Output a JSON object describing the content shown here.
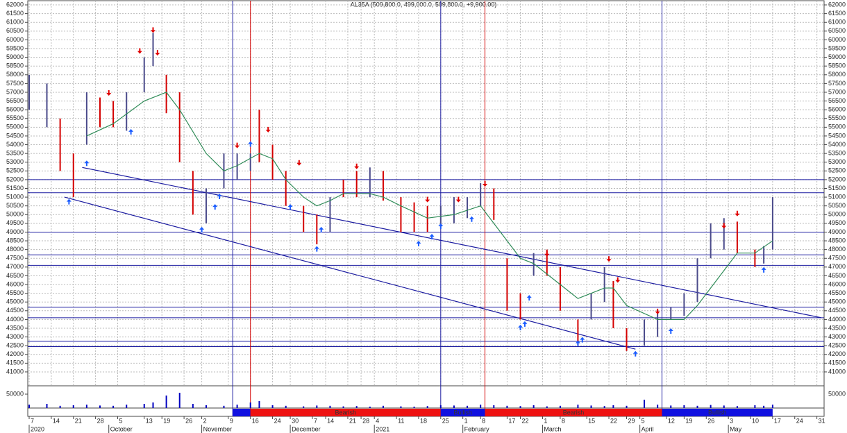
{
  "chart_data": {
    "type": "ohlc",
    "title": "AL35A (509,800.0, 499,000.0, 509,800.0, +9,900.00)",
    "x": [
      0,
      4,
      7,
      10,
      13,
      16,
      19,
      22,
      26,
      28,
      31,
      34,
      37,
      40,
      44,
      47,
      50,
      52,
      55,
      58,
      62,
      65,
      68,
      71,
      74,
      77,
      80,
      84,
      87,
      90,
      93,
      96,
      99,
      102,
      105,
      108,
      111,
      114,
      117,
      120,
      124,
      127,
      130,
      132,
      135,
      139,
      142,
      145,
      148,
      151,
      154,
      157,
      160,
      164,
      166,
      168
    ],
    "high": [
      58000,
      57500,
      55500,
      53500,
      57000,
      56700,
      56500,
      57000,
      59000,
      60400,
      58000,
      57000,
      52500,
      51500,
      53500,
      53500,
      53500,
      56000,
      54000,
      52500,
      50500,
      50000,
      51000,
      52000,
      52500,
      52700,
      52500,
      51000,
      50700,
      50500,
      50500,
      51000,
      51000,
      51800,
      51500,
      47500,
      45500,
      47800,
      48000,
      47000,
      44000,
      45500,
      47000,
      46200,
      43500,
      44000,
      44500,
      44700,
      45500,
      47500,
      49500,
      49800,
      49600,
      48000,
      48200,
      51000
    ],
    "low": [
      56000,
      55000,
      52500,
      51000,
      54000,
      55000,
      55000,
      54800,
      57000,
      58500,
      55800,
      53000,
      50000,
      49500,
      51500,
      52000,
      52500,
      53000,
      52000,
      50500,
      49000,
      48300,
      49000,
      51000,
      51000,
      51000,
      50800,
      49000,
      49000,
      49000,
      49300,
      49500,
      49800,
      50500,
      49700,
      44500,
      44000,
      46500,
      46500,
      44500,
      42500,
      44000,
      45000,
      43500,
      42200,
      42500,
      43000,
      44000,
      44200,
      45000,
      47500,
      48000,
      47800,
      47000,
      47200,
      48000
    ],
    "colors": [
      "#4a4a8a",
      "#4a4a8a",
      "#d40000",
      "#d40000",
      "#4a4a8a",
      "#d40000",
      "#d40000",
      "#4a4a8a",
      "#4a4a8a",
      "#4a4a8a",
      "#d40000",
      "#d40000",
      "#d40000",
      "#4a4a8a",
      "#4a4a8a",
      "#4a4a8a",
      "#4a4a8a",
      "#d40000",
      "#d40000",
      "#d40000",
      "#d40000",
      "#d40000",
      "#4a4a8a",
      "#d40000",
      "#d40000",
      "#4a4a8a",
      "#d40000",
      "#d40000",
      "#d40000",
      "#d40000",
      "#4a4a8a",
      "#4a4a8a",
      "#4a4a8a",
      "#4a4a8a",
      "#d40000",
      "#d40000",
      "#d40000",
      "#4a4a8a",
      "#d40000",
      "#d40000",
      "#d40000",
      "#4a4a8a",
      "#4a4a8a",
      "#d40000",
      "#d40000",
      "#4a4a8a",
      "#4a4a8a",
      "#4a4a8a",
      "#4a4a8a",
      "#4a4a8a",
      "#4a4a8a",
      "#4a4a8a",
      "#d40000",
      "#d40000",
      "#4a4a8a",
      "#4a4a8a"
    ],
    "volume": [
      12000,
      15000,
      8000,
      10000,
      12000,
      9000,
      8000,
      12000,
      15000,
      20000,
      45000,
      55000,
      15000,
      10000,
      8000,
      12000,
      20000,
      25000,
      10000,
      8000,
      6000,
      9000,
      8000,
      6000,
      7000,
      5000,
      8000,
      6000,
      5000,
      7000,
      10000,
      9000,
      8000,
      12000,
      10000,
      8000,
      7000,
      10000,
      6000,
      8000,
      12000,
      9000,
      7000,
      10000,
      8000,
      30000,
      12000,
      9000,
      10000,
      8000,
      11000,
      9000,
      7000,
      10000,
      8000,
      12000
    ],
    "volume_color": "#0000c0",
    "xlim": [
      0,
      179
    ],
    "xticks": [
      {
        "value": 0,
        "label": "7"
      },
      {
        "value": 5,
        "label": "14"
      },
      {
        "value": 10,
        "label": "21"
      },
      {
        "value": 15,
        "label": "28"
      },
      {
        "value": 20,
        "label": "5"
      },
      {
        "value": 26,
        "label": "13"
      },
      {
        "value": 30,
        "label": "19"
      },
      {
        "value": 35,
        "label": "26"
      },
      {
        "value": 39,
        "label": "2"
      },
      {
        "value": 45,
        "label": "9"
      },
      {
        "value": 50,
        "label": "16"
      },
      {
        "value": 55,
        "label": "24"
      },
      {
        "value": 59,
        "label": "30"
      },
      {
        "value": 64,
        "label": "7"
      },
      {
        "value": 67,
        "label": "14"
      },
      {
        "value": 72,
        "label": "21"
      },
      {
        "value": 75,
        "label": "28"
      },
      {
        "value": 78,
        "label": "4"
      },
      {
        "value": 83,
        "label": "11"
      },
      {
        "value": 88,
        "label": "18"
      },
      {
        "value": 93,
        "label": "25"
      },
      {
        "value": 98,
        "label": "1"
      },
      {
        "value": 102,
        "label": "8"
      },
      {
        "value": 108,
        "label": "17"
      },
      {
        "value": 111,
        "label": "22"
      },
      {
        "value": 116,
        "label": "1"
      },
      {
        "value": 120,
        "label": "8"
      },
      {
        "value": 126,
        "label": "15"
      },
      {
        "value": 131,
        "label": "22"
      },
      {
        "value": 135,
        "label": "29"
      },
      {
        "value": 138,
        "label": "5"
      },
      {
        "value": 144,
        "label": "12"
      },
      {
        "value": 148,
        "label": "19"
      },
      {
        "value": 153,
        "label": "26"
      },
      {
        "value": 158,
        "label": "3"
      },
      {
        "value": 163,
        "label": "10"
      },
      {
        "value": 168,
        "label": "17"
      },
      {
        "value": 173,
        "label": "24"
      },
      {
        "value": 178,
        "label": "31"
      }
    ],
    "month_labels": [
      {
        "value": 0,
        "label": "2020"
      },
      {
        "value": 18,
        "label": "October"
      },
      {
        "value": 39,
        "label": "November"
      },
      {
        "value": 59,
        "label": "December"
      },
      {
        "value": 78,
        "label": "2021"
      },
      {
        "value": 98,
        "label": "February"
      },
      {
        "value": 116,
        "label": "March"
      },
      {
        "value": 138,
        "label": "April"
      },
      {
        "value": 158,
        "label": "May"
      }
    ],
    "ylim": [
      40800,
      62200
    ],
    "yticks": [
      41000,
      41500,
      42000,
      42500,
      43000,
      43500,
      44000,
      44500,
      45000,
      45500,
      46000,
      46500,
      47000,
      47500,
      48000,
      48500,
      49000,
      49500,
      50000,
      50500,
      51000,
      51500,
      52000,
      52500,
      53000,
      53500,
      54000,
      54500,
      55000,
      55500,
      56000,
      56500,
      57000,
      57500,
      58000,
      58500,
      59000,
      59500,
      60000,
      60500,
      61000,
      61500,
      62000
    ],
    "volume_ylim": [
      0,
      80000
    ],
    "volume_yticks": [
      50000
    ],
    "grid": true,
    "moving_average": {
      "color": "#2e8b57",
      "x": [
        13,
        19,
        26,
        31,
        34,
        40,
        44,
        47,
        52,
        55,
        58,
        62,
        65,
        68,
        71,
        77,
        80,
        84,
        90,
        96,
        102,
        105,
        111,
        114,
        120,
        124,
        130,
        132,
        135,
        142,
        148,
        151,
        157,
        160,
        164,
        168
      ],
      "values": [
        54500,
        55200,
        56500,
        57000,
        56000,
        53500,
        52500,
        52800,
        53500,
        53200,
        52000,
        51000,
        50500,
        50800,
        51200,
        51200,
        51000,
        50500,
        49800,
        50000,
        50500,
        49500,
        47500,
        47200,
        46000,
        45200,
        45800,
        45800,
        44800,
        44000,
        44000,
        44800,
        46800,
        47800,
        47800,
        48500
      ]
    },
    "trend_lines": [
      {
        "color": "#1a1aa0",
        "x": [
          12,
          179
        ],
        "y": [
          52700,
          44100
        ]
      },
      {
        "color": "#1a1aa0",
        "x": [
          8,
          137
        ],
        "y": [
          51000,
          42300
        ]
      }
    ],
    "hlines": {
      "color": "#1a1aa0",
      "values": [
        52000,
        51250,
        49000,
        47700,
        47100,
        44700,
        44100,
        42750,
        42450
      ]
    },
    "vlines": [
      {
        "color": "#1a1aa0",
        "x": 46
      },
      {
        "color": "#d40000",
        "x": 50
      },
      {
        "color": "#1a1aa0",
        "x": 93
      },
      {
        "color": "#d40000",
        "x": 103
      },
      {
        "color": "#1a1aa0",
        "x": 143
      }
    ],
    "signals": {
      "down": {
        "color": "#e00000",
        "x": [
          18,
          25,
          28,
          29,
          47,
          54,
          61,
          74,
          90,
          97,
          103,
          117,
          131,
          133,
          142,
          157,
          160
        ],
        "values": [
          56800,
          59200,
          60400,
          59100,
          53800,
          54700,
          52800,
          52600,
          50700,
          50700,
          51600,
          47600,
          47300,
          46100,
          44300,
          49200,
          49900
        ]
      },
      "up": {
        "color": "#1a5cff",
        "x": [
          9,
          13,
          23,
          39,
          42,
          43,
          50,
          59,
          65,
          66,
          88,
          91,
          93,
          100,
          111,
          112,
          113,
          124,
          125,
          137,
          145,
          166
        ],
        "values": [
          50900,
          53100,
          54900,
          49300,
          50600,
          51200,
          54200,
          50600,
          48200,
          49300,
          48500,
          48900,
          49500,
          49900,
          43700,
          43900,
          45400,
          42800,
          43000,
          42200,
          43500,
          47000
        ]
      }
    },
    "regimes": [
      {
        "start": 46,
        "end": 50,
        "color": "#1010e0"
      },
      {
        "label": "Bearish",
        "start": 50,
        "end": 93,
        "color": "#ee1111"
      },
      {
        "label": "Bullish",
        "start": 93,
        "end": 103,
        "color": "#1010e0"
      },
      {
        "label": "Bearish",
        "start": 103,
        "end": 143,
        "color": "#ee1111"
      },
      {
        "label": "Bullish",
        "start": 143,
        "end": 168,
        "color": "#1010e0"
      }
    ]
  }
}
